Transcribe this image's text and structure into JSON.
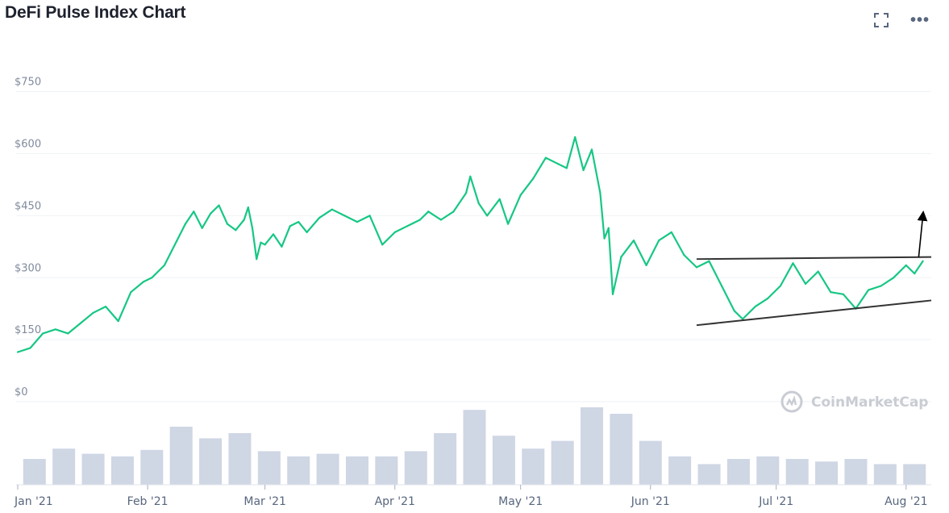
{
  "header": {
    "title": "DeFi Pulse Index Chart",
    "expand_icon": "expand-icon",
    "more_icon": "more-icon",
    "more_glyph": "•••"
  },
  "watermark": {
    "text": "CoinMarketCap",
    "icon": "coinmarketcap-logo-icon"
  },
  "colors": {
    "price_line": "#16c784",
    "volume_bars": "#cfd6e4",
    "grid": "#eff2f5",
    "annotation": "#000000"
  },
  "chart_data": [
    {
      "type": "line",
      "series": [
        {
          "values": [
            [
              "2021-01-01",
              120
            ],
            [
              "2021-01-04",
              130
            ],
            [
              "2021-01-07",
              165
            ],
            [
              "2021-01-10",
              175
            ],
            [
              "2021-01-13",
              165
            ],
            [
              "2021-01-16",
              190
            ],
            [
              "2021-01-19",
              215
            ],
            [
              "2021-01-22",
              230
            ],
            [
              "2021-01-25",
              195
            ],
            [
              "2021-01-28",
              265
            ],
            [
              "2021-01-31",
              290
            ],
            [
              "2021-02-02",
              300
            ],
            [
              "2021-02-05",
              330
            ],
            [
              "2021-02-08",
              390
            ],
            [
              "2021-02-10",
              430
            ],
            [
              "2021-02-12",
              460
            ],
            [
              "2021-02-14",
              420
            ],
            [
              "2021-02-16",
              455
            ],
            [
              "2021-02-18",
              475
            ],
            [
              "2021-02-20",
              430
            ],
            [
              "2021-02-22",
              415
            ],
            [
              "2021-02-24",
              440
            ],
            [
              "2021-02-25",
              470
            ],
            [
              "2021-02-26",
              420
            ],
            [
              "2021-02-27",
              345
            ],
            [
              "2021-02-28",
              385
            ],
            [
              "2021-03-01",
              380
            ],
            [
              "2021-03-03",
              405
            ],
            [
              "2021-03-05",
              375
            ],
            [
              "2021-03-07",
              425
            ],
            [
              "2021-03-09",
              435
            ],
            [
              "2021-03-11",
              410
            ],
            [
              "2021-03-14",
              445
            ],
            [
              "2021-03-17",
              465
            ],
            [
              "2021-03-20",
              450
            ],
            [
              "2021-03-23",
              435
            ],
            [
              "2021-03-26",
              450
            ],
            [
              "2021-03-29",
              380
            ],
            [
              "2021-04-01",
              410
            ],
            [
              "2021-04-04",
              425
            ],
            [
              "2021-04-07",
              440
            ],
            [
              "2021-04-09",
              460
            ],
            [
              "2021-04-12",
              440
            ],
            [
              "2021-04-15",
              460
            ],
            [
              "2021-04-18",
              505
            ],
            [
              "2021-04-19",
              545
            ],
            [
              "2021-04-21",
              480
            ],
            [
              "2021-04-23",
              450
            ],
            [
              "2021-04-26",
              490
            ],
            [
              "2021-04-28",
              430
            ],
            [
              "2021-05-01",
              500
            ],
            [
              "2021-05-04",
              540
            ],
            [
              "2021-05-07",
              590
            ],
            [
              "2021-05-10",
              575
            ],
            [
              "2021-05-12",
              565
            ],
            [
              "2021-05-14",
              640
            ],
            [
              "2021-05-16",
              560
            ],
            [
              "2021-05-18",
              610
            ],
            [
              "2021-05-20",
              505
            ],
            [
              "2021-05-21",
              395
            ],
            [
              "2021-05-22",
              420
            ],
            [
              "2021-05-23",
              260
            ],
            [
              "2021-05-25",
              350
            ],
            [
              "2021-05-28",
              390
            ],
            [
              "2021-05-31",
              330
            ],
            [
              "2021-06-03",
              390
            ],
            [
              "2021-06-06",
              410
            ],
            [
              "2021-06-09",
              355
            ],
            [
              "2021-06-12",
              325
            ],
            [
              "2021-06-15",
              340
            ],
            [
              "2021-06-18",
              280
            ],
            [
              "2021-06-21",
              220
            ],
            [
              "2021-06-23",
              200
            ],
            [
              "2021-06-26",
              230
            ],
            [
              "2021-06-29",
              250
            ],
            [
              "2021-07-02",
              280
            ],
            [
              "2021-07-05",
              335
            ],
            [
              "2021-07-08",
              285
            ],
            [
              "2021-07-11",
              315
            ],
            [
              "2021-07-14",
              265
            ],
            [
              "2021-07-17",
              260
            ],
            [
              "2021-07-20",
              225
            ],
            [
              "2021-07-23",
              270
            ],
            [
              "2021-07-26",
              280
            ],
            [
              "2021-07-29",
              300
            ],
            [
              "2021-08-01",
              330
            ],
            [
              "2021-08-03",
              310
            ],
            [
              "2021-08-05",
              340
            ]
          ]
        }
      ],
      "x_type": "date",
      "xlim": [
        "2021-01-01",
        "2021-08-07"
      ],
      "ylim": [
        0,
        800
      ],
      "yticks": [
        0,
        150,
        300,
        450,
        600,
        750
      ],
      "ytick_labels": [
        "$0",
        "$150",
        "$300",
        "$450",
        "$600",
        "$750"
      ],
      "xtick_dates": [
        "2021-01-01",
        "2021-02-01",
        "2021-03-01",
        "2021-04-01",
        "2021-05-01",
        "2021-06-01",
        "2021-07-01",
        "2021-08-01"
      ],
      "xtick_labels": [
        "Jan '21",
        "Feb '21",
        "Mar '21",
        "Apr '21",
        "May '21",
        "Jun '21",
        "Jul '21",
        "Aug '21"
      ],
      "grid": true,
      "annotations": [
        {
          "type": "trendline",
          "from": [
            "2021-06-12",
            345
          ],
          "to": [
            "2021-08-07",
            350
          ]
        },
        {
          "type": "trendline",
          "from": [
            "2021-06-12",
            185
          ],
          "to": [
            "2021-08-07",
            245
          ]
        },
        {
          "type": "arrow",
          "from": [
            "2021-08-04",
            350
          ],
          "to": [
            "2021-08-05",
            450
          ]
        }
      ]
    },
    {
      "type": "bar",
      "values": [
        [
          "2021-01-05",
          0.2
        ],
        [
          "2021-01-12",
          0.28
        ],
        [
          "2021-01-19",
          0.24
        ],
        [
          "2021-01-26",
          0.22
        ],
        [
          "2021-02-02",
          0.27
        ],
        [
          "2021-02-09",
          0.45
        ],
        [
          "2021-02-16",
          0.36
        ],
        [
          "2021-02-23",
          0.4
        ],
        [
          "2021-03-02",
          0.26
        ],
        [
          "2021-03-09",
          0.22
        ],
        [
          "2021-03-16",
          0.24
        ],
        [
          "2021-03-23",
          0.22
        ],
        [
          "2021-03-30",
          0.22
        ],
        [
          "2021-04-06",
          0.26
        ],
        [
          "2021-04-13",
          0.4
        ],
        [
          "2021-04-20",
          0.58
        ],
        [
          "2021-04-27",
          0.38
        ],
        [
          "2021-05-04",
          0.28
        ],
        [
          "2021-05-11",
          0.34
        ],
        [
          "2021-05-18",
          0.6
        ],
        [
          "2021-05-25",
          0.55
        ],
        [
          "2021-06-01",
          0.34
        ],
        [
          "2021-06-08",
          0.22
        ],
        [
          "2021-06-15",
          0.16
        ],
        [
          "2021-06-22",
          0.2
        ],
        [
          "2021-06-29",
          0.22
        ],
        [
          "2021-07-06",
          0.2
        ],
        [
          "2021-07-13",
          0.18
        ],
        [
          "2021-07-20",
          0.2
        ],
        [
          "2021-07-27",
          0.16
        ],
        [
          "2021-08-03",
          0.16
        ]
      ]
    }
  ]
}
